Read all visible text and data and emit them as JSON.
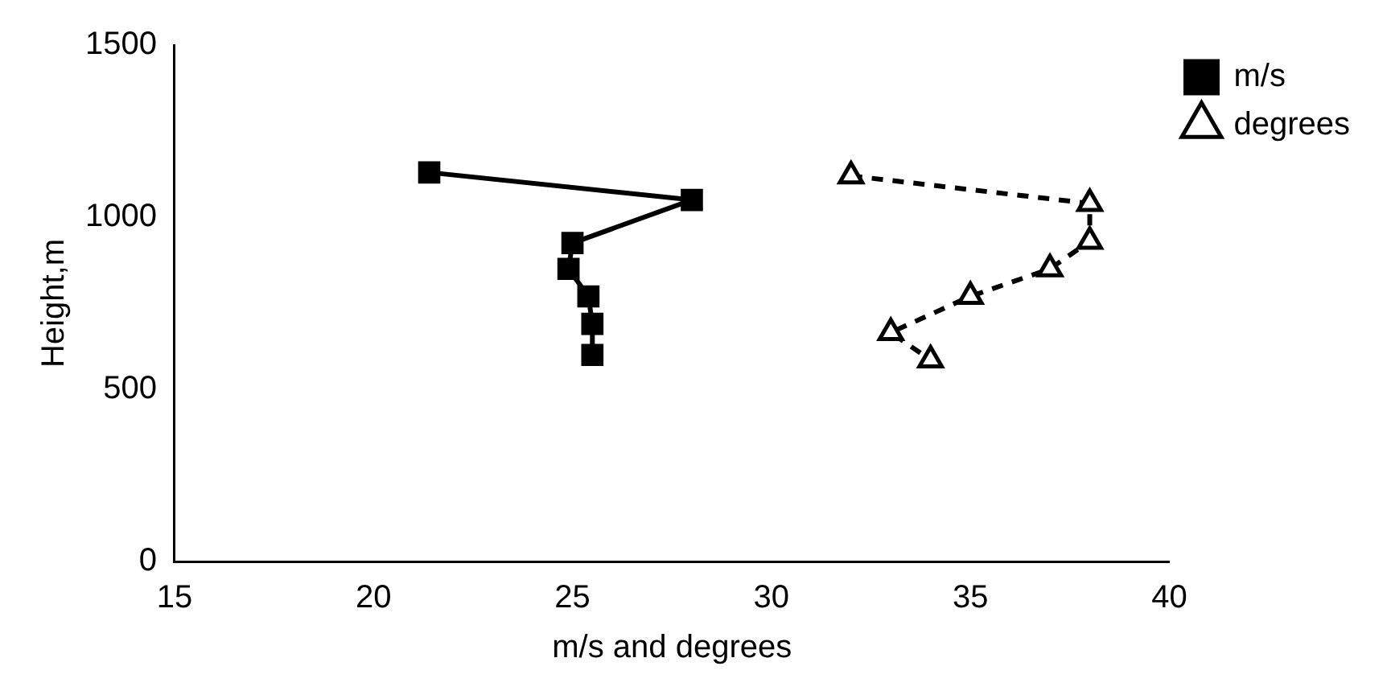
{
  "chart_data": {
    "type": "line",
    "xlabel": "m/s and degrees",
    "ylabel": "Height,m",
    "xlim": [
      15,
      40
    ],
    "xticks": [
      15,
      20,
      25,
      30,
      35,
      40
    ],
    "ylim": [
      0,
      1500
    ],
    "yticks": [
      0,
      500,
      1000,
      1500
    ],
    "grid": false,
    "legend": "top right",
    "series": [
      {
        "name": "m/s",
        "color": "#000000",
        "marker": "square",
        "line_style": "solid",
        "x": [
          21.4,
          28.0,
          25.0,
          24.9,
          25.4,
          25.5,
          25.5
        ],
        "values": [
          1130,
          1050,
          925,
          850,
          770,
          690,
          600
        ]
      },
      {
        "name": "degrees",
        "color": "#000000",
        "marker": "triangle",
        "line_style": "dashed",
        "x": [
          32,
          38,
          38,
          37,
          35,
          33,
          34
        ],
        "values": [
          1120,
          1040,
          930,
          850,
          770,
          665,
          585
        ]
      }
    ]
  }
}
